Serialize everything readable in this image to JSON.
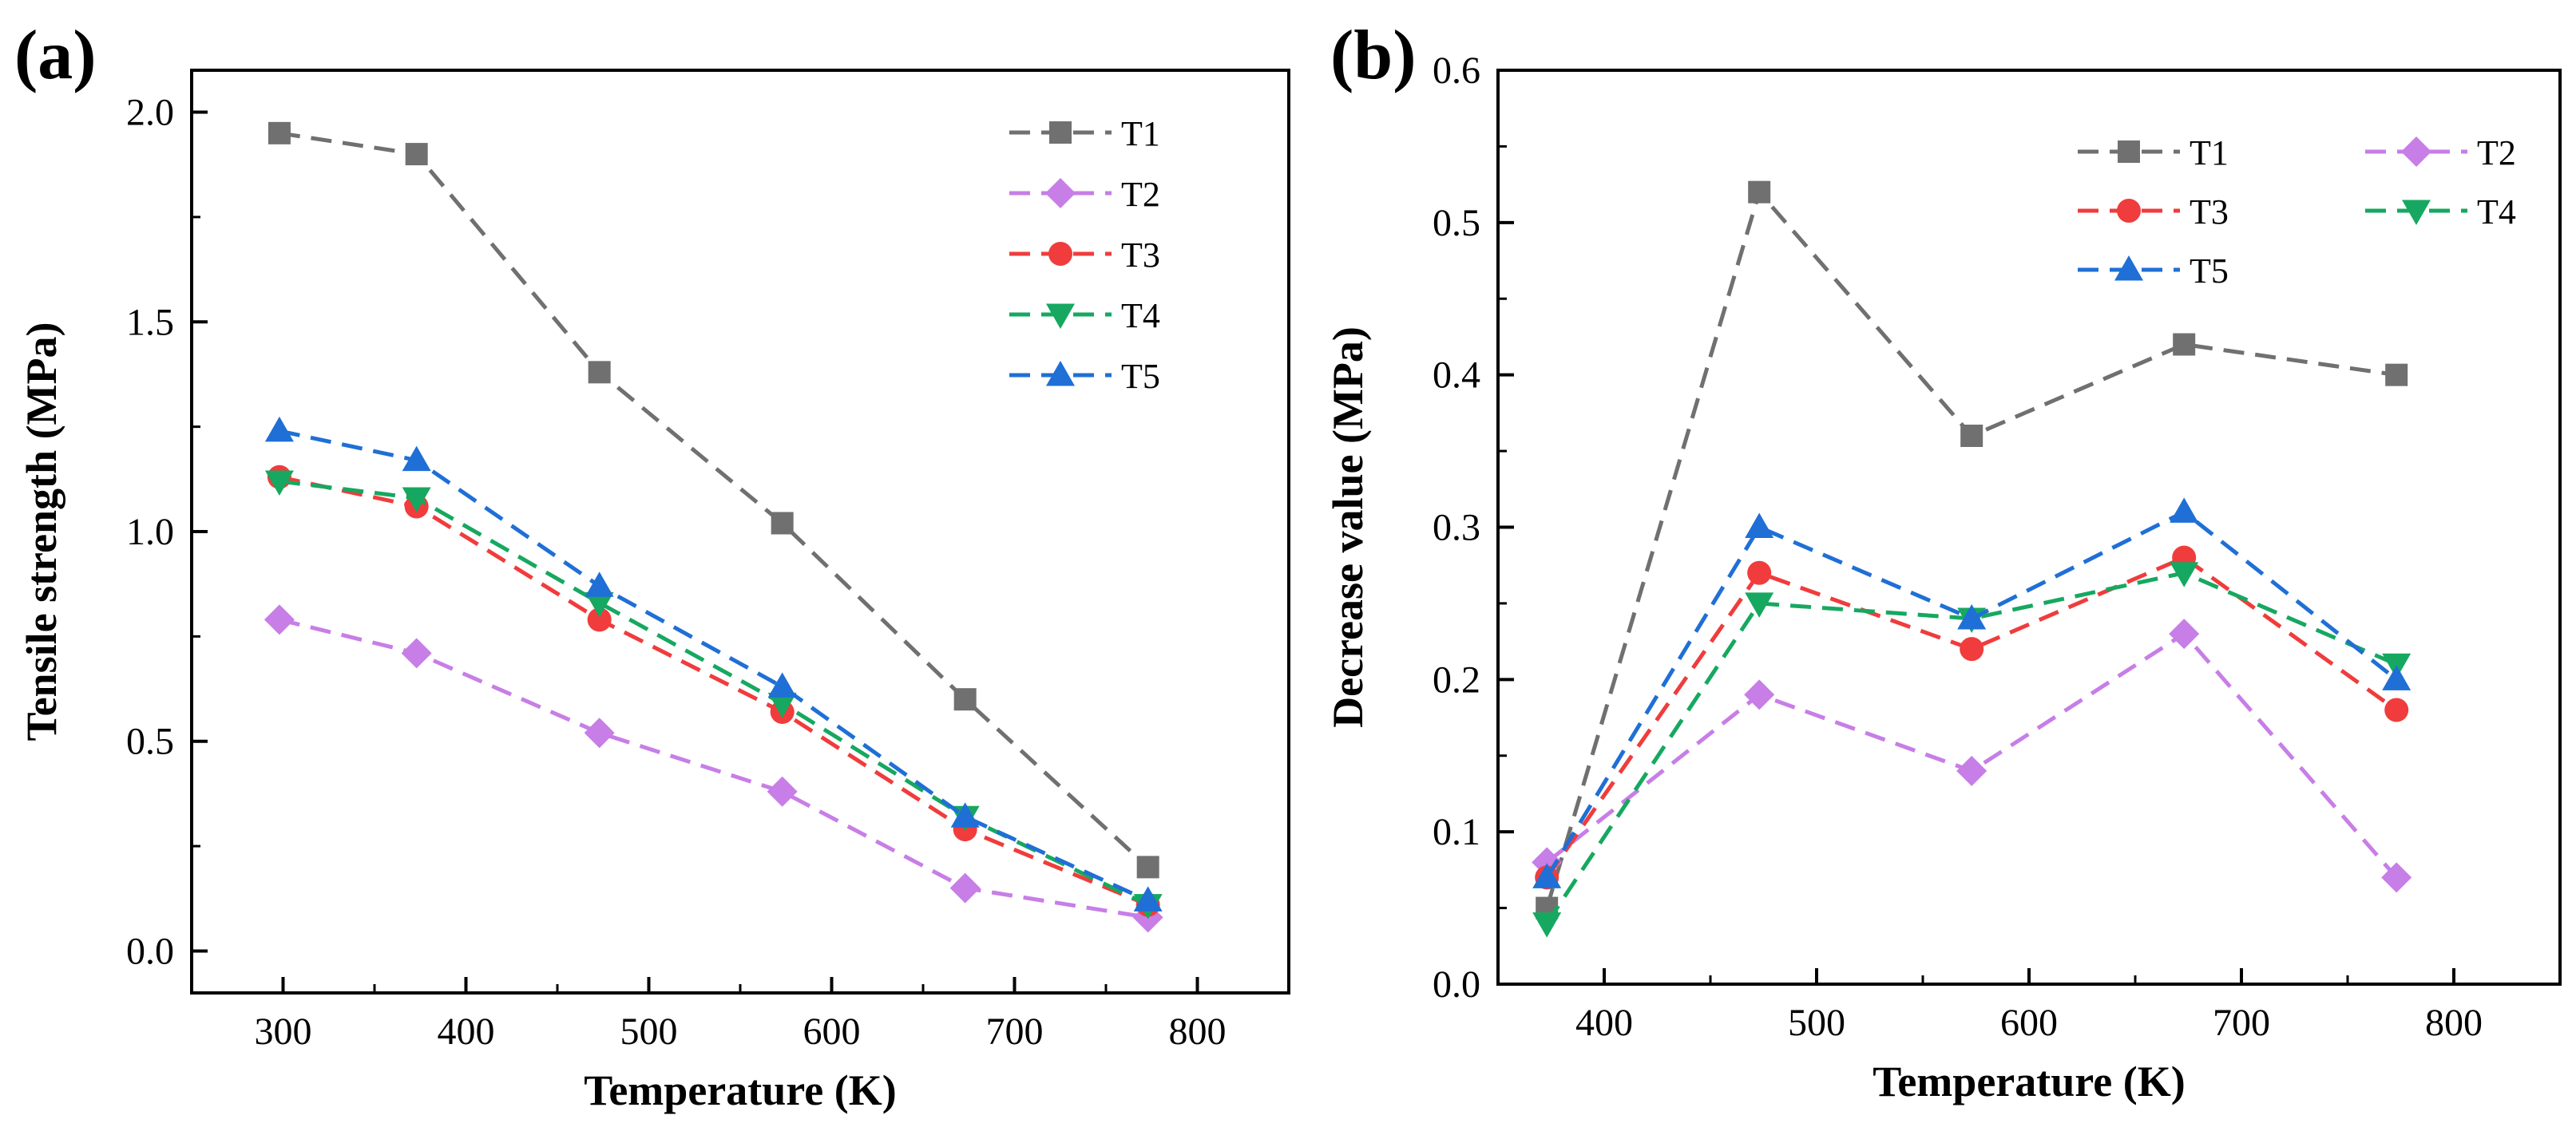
{
  "chart_data": [
    {
      "type": "line",
      "panel_label": "(a)",
      "xlabel": "Temperature (K)",
      "ylabel": "Tensile strength (MPa)",
      "xlim": [
        250,
        850
      ],
      "ylim": [
        -0.1,
        2.1
      ],
      "xticks": [
        300,
        400,
        500,
        600,
        700,
        800
      ],
      "yticks": [
        0.0,
        0.5,
        1.0,
        1.5,
        2.0
      ],
      "xtick_labels": [
        "300",
        "400",
        "500",
        "600",
        "700",
        "800"
      ],
      "ytick_labels": [
        "0.0",
        "0.5",
        "1.0",
        "1.5",
        "2.0"
      ],
      "x": [
        298,
        373,
        473,
        573,
        673,
        773
      ],
      "legend_position": "top-right",
      "legend_columns": 1,
      "grid": false,
      "series": [
        {
          "name": "T1",
          "color": "#707070",
          "marker": "square",
          "values": [
            1.95,
            1.9,
            1.38,
            1.02,
            0.6,
            0.2
          ]
        },
        {
          "name": "T2",
          "color": "#c77ee6",
          "marker": "diamond",
          "values": [
            0.79,
            0.71,
            0.52,
            0.38,
            0.15,
            0.08
          ]
        },
        {
          "name": "T3",
          "color": "#f03c3c",
          "marker": "circle",
          "values": [
            1.13,
            1.06,
            0.79,
            0.57,
            0.29,
            0.11
          ]
        },
        {
          "name": "T4",
          "color": "#16a860",
          "marker": "triangle-down",
          "values": [
            1.12,
            1.08,
            0.83,
            0.59,
            0.32,
            0.11
          ]
        },
        {
          "name": "T5",
          "color": "#1f6fd6",
          "marker": "triangle-up",
          "values": [
            1.24,
            1.17,
            0.87,
            0.63,
            0.32,
            0.12
          ]
        }
      ]
    },
    {
      "type": "line",
      "panel_label": "(b)",
      "xlabel": "Temperature (K)",
      "ylabel": "Decrease value (MPa)",
      "xlim": [
        350,
        850
      ],
      "ylim": [
        0.0,
        0.6
      ],
      "xticks": [
        400,
        500,
        600,
        700,
        800
      ],
      "yticks": [
        0.0,
        0.1,
        0.2,
        0.3,
        0.4,
        0.5,
        0.6
      ],
      "xtick_labels": [
        "400",
        "500",
        "600",
        "700",
        "800"
      ],
      "ytick_labels": [
        "0.0",
        "0.1",
        "0.2",
        "0.3",
        "0.4",
        "0.5",
        "0.6"
      ],
      "x": [
        373,
        473,
        573,
        673,
        773
      ],
      "legend_position": "top-right",
      "legend_columns": 2,
      "grid": false,
      "series": [
        {
          "name": "T1",
          "color": "#707070",
          "marker": "square",
          "values": [
            0.05,
            0.52,
            0.36,
            0.42,
            0.4
          ]
        },
        {
          "name": "T2",
          "color": "#c77ee6",
          "marker": "diamond",
          "values": [
            0.08,
            0.19,
            0.14,
            0.23,
            0.07
          ]
        },
        {
          "name": "T3",
          "color": "#f03c3c",
          "marker": "circle",
          "values": [
            0.07,
            0.27,
            0.22,
            0.28,
            0.18
          ]
        },
        {
          "name": "T4",
          "color": "#16a860",
          "marker": "triangle-down",
          "values": [
            0.04,
            0.25,
            0.24,
            0.27,
            0.21
          ]
        },
        {
          "name": "T5",
          "color": "#1f6fd6",
          "marker": "triangle-up",
          "values": [
            0.07,
            0.3,
            0.24,
            0.31,
            0.2
          ]
        }
      ]
    }
  ]
}
